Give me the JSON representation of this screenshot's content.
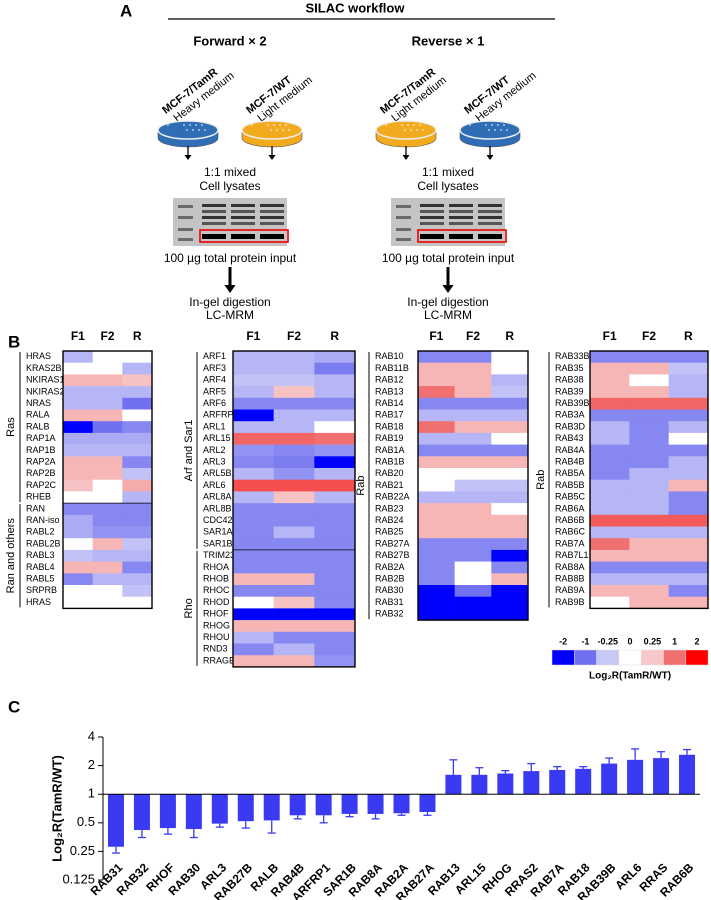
{
  "panel_labels": [
    "A",
    "B",
    "C"
  ],
  "workflow": {
    "title": "SILAC workflow",
    "forward": {
      "title": "Forward × 2",
      "left": {
        "line": "MCF-7/TamR",
        "medium": "Heavy medium"
      },
      "right": {
        "line": "MCF-7/WT",
        "medium": "Light medium"
      },
      "mix": [
        "1:1 mixed",
        "Cell lysates"
      ],
      "input": "100 µg total protein input",
      "digest": [
        "In-gel digestion",
        "LC-MRM"
      ]
    },
    "reverse": {
      "title": "Reverse × 1",
      "left": {
        "line": "MCF-7/TamR",
        "medium": "Light medium"
      },
      "right": {
        "line": "MCF-7/WT",
        "medium": "Heavy medium"
      },
      "mix": [
        "1:1 mixed",
        "Cell lysates"
      ],
      "input": "100 µg total protein input",
      "digest": [
        "In-gel digestion",
        "LC-MRM"
      ]
    }
  },
  "colorbar": {
    "ticks": [
      -2,
      -1,
      -0.25,
      0,
      0.25,
      1,
      2
    ],
    "colors": [
      "#0000ff",
      "#7070f0",
      "#c8c8f8",
      "#ffffff",
      "#f8c8c8",
      "#f07070",
      "#ff0000"
    ],
    "label": "Log₂R(TamR/WT)"
  },
  "chart_data": [
    {
      "type": "heatmap",
      "columns": [
        "F1",
        "F2",
        "R"
      ],
      "groups": [
        {
          "name": "Ras",
          "rows": [
            "HRAS",
            "KRAS2B",
            "NKIRAS1",
            "NKIRAS2",
            "NRAS",
            "RALA",
            "RALB",
            "RAP1A",
            "RAP1B",
            "RAP2A",
            "RAP2B",
            "RAP2C",
            "RHEB"
          ],
          "values": [
            [
              -0.4,
              0,
              0
            ],
            [
              0,
              0,
              -0.4
            ],
            [
              0.4,
              0.4,
              0.3
            ],
            [
              -0.4,
              -0.4,
              -0.4
            ],
            [
              -0.4,
              -0.4,
              -1
            ],
            [
              0.4,
              0.4,
              0
            ],
            [
              -2,
              -1,
              -0.8
            ],
            [
              -0.5,
              -0.5,
              -0.5
            ],
            [
              -0.4,
              -0.4,
              -0.4
            ],
            [
              0.4,
              0.4,
              -0.8
            ],
            [
              0.4,
              0.4,
              -0.3
            ],
            [
              0.3,
              0,
              0.5
            ],
            [
              0,
              0,
              -0.4
            ]
          ]
        },
        {
          "name": "Ran and others",
          "rows": [
            "RAN",
            "RAN-iso",
            "RABL2",
            "RABL2B",
            "RABL3",
            "RABL4",
            "RABL5",
            "SRPRB",
            "HRAS"
          ],
          "values": [
            [
              -0.8,
              -0.8,
              -0.8
            ],
            [
              -0.5,
              -0.8,
              -0.8
            ],
            [
              -0.5,
              -0.7,
              -0.7
            ],
            [
              0,
              0.4,
              -0.3
            ],
            [
              -0.3,
              -0.4,
              -0.4
            ],
            [
              0.4,
              0.4,
              -0.8
            ],
            [
              -0.8,
              -0.4,
              -0.4
            ],
            [
              0,
              0,
              -0.3
            ],
            [
              0,
              0,
              0
            ]
          ]
        }
      ]
    },
    {
      "type": "heatmap",
      "columns": [
        "F1",
        "F2",
        "R"
      ],
      "groups": [
        {
          "name": "Arf and Sar1",
          "rows": [
            "ARF1",
            "ARF3",
            "ARF4",
            "ARF5",
            "ARF6",
            "ARFRP1",
            "ARL1",
            "ARL15",
            "ARL2",
            "ARL3",
            "ARL5B",
            "ARL6",
            "ARL8A",
            "ARL8B",
            "CDC42",
            "SAR1A",
            "SAR1B"
          ],
          "values": [
            [
              -0.4,
              -0.4,
              -0.5
            ],
            [
              -0.4,
              -0.4,
              -0.9
            ],
            [
              -0.3,
              -0.3,
              -0.4
            ],
            [
              -0.4,
              0.3,
              -0.4
            ],
            [
              -0.8,
              -0.8,
              -0.8
            ],
            [
              -2,
              -0.4,
              -0.4
            ],
            [
              -0.4,
              -0.4,
              0
            ],
            [
              1.1,
              1.1,
              1
            ],
            [
              -0.7,
              -0.8,
              -0.7
            ],
            [
              -0.8,
              -0.9,
              -2
            ],
            [
              -0.4,
              -0.7,
              -0.4
            ],
            [
              1.3,
              1.3,
              1.3
            ],
            [
              -0.4,
              0.3,
              -0.4
            ],
            [
              -0.8,
              -0.8,
              -0.8
            ],
            [
              -0.8,
              -0.8,
              -0.8
            ],
            [
              -0.8,
              -0.4,
              -0.8
            ],
            [
              -0.8,
              -0.8,
              -0.8
            ]
          ]
        },
        {
          "name": "Rho",
          "rows": [
            "TRIM23",
            "RHOA",
            "RHOB",
            "RHOC",
            "RHOD",
            "RHOF",
            "RHOG",
            "RHOU",
            "RND3",
            "RRAGB"
          ],
          "values": [
            [
              -0.8,
              -0.8,
              -0.8
            ],
            [
              -0.8,
              -0.8,
              -0.8
            ],
            [
              0.4,
              0.4,
              -0.8
            ],
            [
              -0.8,
              -0.8,
              -0.8
            ],
            [
              0,
              0.3,
              -0.8
            ],
            [
              -2,
              -2,
              -2
            ],
            [
              0.4,
              0.4,
              0.4
            ],
            [
              -0.4,
              -0.8,
              -0.8
            ],
            [
              -0.8,
              -0.4,
              -0.8
            ],
            [
              0.4,
              0.4,
              -0.7
            ]
          ]
        }
      ]
    },
    {
      "type": "heatmap",
      "columns": [
        "F1",
        "F2",
        "R"
      ],
      "groups": [
        {
          "name": "Rab",
          "rows": [
            "RAB10",
            "RAB11B",
            "RAB12",
            "RAB13",
            "RAB14",
            "RAB17",
            "RAB18",
            "RAB19",
            "RAB1A",
            "RAB1B",
            "RAB20",
            "RAB21",
            "RAB22A",
            "RAB23",
            "RAB24",
            "RAB25",
            "RAB27A",
            "RAB27B",
            "RAB2A",
            "RAB2B",
            "RAB30",
            "RAB31",
            "RAB32"
          ],
          "values": [
            [
              -0.8,
              -0.8,
              0
            ],
            [
              0.4,
              0.4,
              0
            ],
            [
              0.4,
              0.4,
              -0.4
            ],
            [
              1,
              0.4,
              -0.3
            ],
            [
              -0.8,
              -0.8,
              -0.8
            ],
            [
              -0.4,
              -0.4,
              -0.4
            ],
            [
              1,
              0.4,
              0.4
            ],
            [
              -0.4,
              -0.4,
              0
            ],
            [
              -0.8,
              -0.8,
              -0.8
            ],
            [
              0.4,
              0.4,
              0.4
            ],
            [
              0,
              0,
              0
            ],
            [
              0,
              -0.3,
              -0.3
            ],
            [
              -0.4,
              -0.4,
              -0.4
            ],
            [
              0.4,
              0.4,
              0
            ],
            [
              0.4,
              0.4,
              0.4
            ],
            [
              0.4,
              0.4,
              0.4
            ],
            [
              -0.8,
              -0.8,
              -0.8
            ],
            [
              -0.8,
              -0.8,
              -2
            ],
            [
              -0.8,
              0,
              -0.8
            ],
            [
              -0.8,
              0,
              0.4
            ],
            [
              -2,
              -1,
              -2
            ],
            [
              -2,
              -2,
              -2
            ],
            [
              -2,
              -2,
              -2
            ]
          ]
        }
      ]
    },
    {
      "type": "heatmap",
      "columns": [
        "F1",
        "F2",
        "R"
      ],
      "groups": [
        {
          "name": "Rab",
          "rows": [
            "RAB33B",
            "RAB35",
            "RAB38",
            "RAB39",
            "RAB39B",
            "RAB3A",
            "RAB3D",
            "RAB43",
            "RAB4A",
            "RAB4B",
            "RAB5A",
            "RAB5B",
            "RAB5C",
            "RAB6A",
            "RAB6B",
            "RAB6C",
            "RAB7A",
            "RAB7L1",
            "RAB8A",
            "RAB8B",
            "RAB9A",
            "RAB9B"
          ],
          "values": [
            [
              -0.8,
              -0.8,
              -0.8
            ],
            [
              0.4,
              0.4,
              -0.3
            ],
            [
              0.4,
              0,
              -0.4
            ],
            [
              0.4,
              0.4,
              -0.4
            ],
            [
              1.1,
              1.1,
              1.1
            ],
            [
              -0.8,
              -0.8,
              -0.8
            ],
            [
              -0.4,
              -0.8,
              -0.4
            ],
            [
              -0.4,
              -0.8,
              0
            ],
            [
              -0.8,
              -0.8,
              -0.8
            ],
            [
              -0.8,
              -0.8,
              -0.4
            ],
            [
              -0.8,
              -0.4,
              -0.4
            ],
            [
              -0.4,
              -0.4,
              0.4
            ],
            [
              -0.4,
              -0.4,
              -0.8
            ],
            [
              -0.4,
              -0.4,
              -0.8
            ],
            [
              1.2,
              1.2,
              1.2
            ],
            [
              -0.4,
              -0.4,
              -0.4
            ],
            [
              1,
              0.4,
              0.4
            ],
            [
              0.4,
              0.4,
              0.4
            ],
            [
              -0.8,
              -0.8,
              -0.8
            ],
            [
              -0.4,
              -0.4,
              -0.4
            ],
            [
              0.4,
              0.4,
              -0.8
            ],
            [
              0,
              0.4,
              0.4
            ]
          ]
        }
      ]
    },
    {
      "type": "bar",
      "ylabel": "Log₂R(TamR/WT)",
      "color": "#3a3af2",
      "log_scale": true,
      "categories": [
        "RAB31",
        "RAB32",
        "RHOF",
        "RAB30",
        "ARL3",
        "RAB27B",
        "RALB",
        "RAB4B",
        "ARFRP1",
        "SAR1B",
        "RAB8A",
        "RAB2A",
        "RAB27A",
        "RAB13",
        "ARL15",
        "RHOG",
        "RRAS2",
        "RAB7A",
        "RAB18",
        "RAB39B",
        "ARL6",
        "RRAS",
        "RAB6B"
      ],
      "values": [
        0.28,
        0.42,
        0.44,
        0.43,
        0.49,
        0.52,
        0.53,
        0.6,
        0.6,
        0.62,
        0.62,
        0.63,
        0.65,
        1.6,
        1.6,
        1.65,
        1.75,
        1.8,
        1.85,
        2.1,
        2.3,
        2.4,
        2.6
      ],
      "errors": [
        0.04,
        0.07,
        0.06,
        0.08,
        0.04,
        0.08,
        0.14,
        0.05,
        0.1,
        0.04,
        0.07,
        0.03,
        0.05,
        0.7,
        0.3,
        0.12,
        0.35,
        0.15,
        0.1,
        0.3,
        0.7,
        0.4,
        0.35
      ],
      "ylim": [
        0.125,
        4
      ],
      "yticks": [
        0.125,
        0.25,
        0.5,
        1,
        2,
        4
      ]
    }
  ]
}
